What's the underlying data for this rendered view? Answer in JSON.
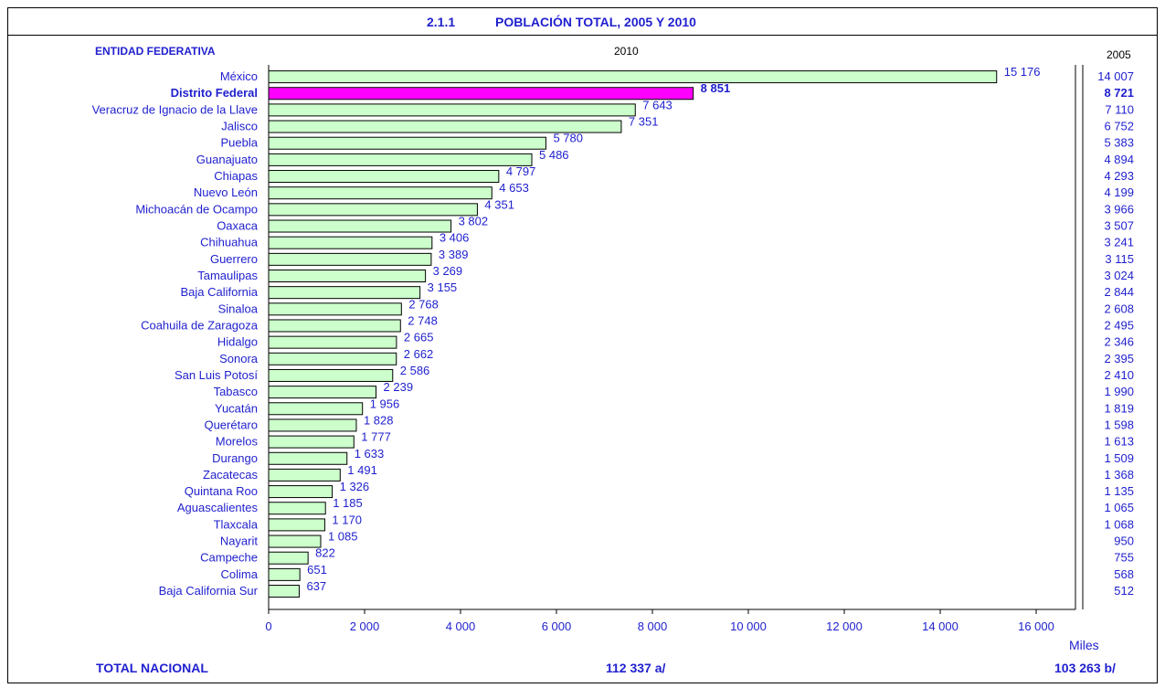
{
  "title": {
    "number": "2.1.1",
    "text": "POBLACIÓN TOTAL, 2005 Y 2010"
  },
  "headers": {
    "entidad": "ENTIDAD FEDERATIVA",
    "year_2010": "2010",
    "year_2005": "2005"
  },
  "unit": "Miles",
  "totals": {
    "label": "TOTAL NACIONAL",
    "value_2010": "112 337 a/",
    "value_2005": "103 263 b/"
  },
  "colors": {
    "bar": "#ccffcc",
    "highlight_bar": "#ff00ff",
    "text": "#1f1fcf"
  },
  "chart_data": {
    "type": "bar",
    "orientation": "horizontal",
    "title": "POBLACIÓN TOTAL, 2005 Y 2010",
    "xlabel": "Miles",
    "xlim": [
      0,
      16000
    ],
    "x_ticks": [
      0,
      2000,
      4000,
      6000,
      8000,
      10000,
      12000,
      14000,
      16000
    ],
    "x_tick_labels": [
      "0",
      "2 000",
      "4 000",
      "6 000",
      "8 000",
      "10 000",
      "12 000",
      "14 000",
      "16 000"
    ],
    "highlight": "Distrito Federal",
    "categories": [
      "México",
      "Distrito Federal",
      "Veracruz de Ignacio de la Llave",
      "Jalisco",
      "Puebla",
      "Guanajuato",
      "Chiapas",
      "Nuevo León",
      "Michoacán de Ocampo",
      "Oaxaca",
      "Chihuahua",
      "Guerrero",
      "Tamaulipas",
      "Baja California",
      "Sinaloa",
      "Coahuila de Zaragoza",
      "Hidalgo",
      "Sonora",
      "San Luis Potosí",
      "Tabasco",
      "Yucatán",
      "Querétaro",
      "Morelos",
      "Durango",
      "Zacatecas",
      "Quintana Roo",
      "Aguascalientes",
      "Tlaxcala",
      "Nayarit",
      "Campeche",
      "Colima",
      "Baja California Sur"
    ],
    "series": [
      {
        "name": "2010",
        "values": [
          15176,
          8851,
          7643,
          7351,
          5780,
          5486,
          4797,
          4653,
          4351,
          3802,
          3406,
          3389,
          3269,
          3155,
          2768,
          2748,
          2665,
          2662,
          2586,
          2239,
          1956,
          1828,
          1777,
          1633,
          1491,
          1326,
          1185,
          1170,
          1085,
          822,
          651,
          637
        ],
        "labels": [
          "15 176",
          "8 851",
          "7 643",
          "7 351",
          "5 780",
          "5 486",
          "4 797",
          "4 653",
          "4 351",
          "3 802",
          "3 406",
          "3 389",
          "3 269",
          "3 155",
          "2 768",
          "2 748",
          "2 665",
          "2 662",
          "2 586",
          "2 239",
          "1 956",
          "1 828",
          "1 777",
          "1 633",
          "1 491",
          "1 326",
          "1 185",
          "1 170",
          "1 085",
          "822",
          "651",
          "637"
        ]
      },
      {
        "name": "2005",
        "values": [
          14007,
          8721,
          7110,
          6752,
          5383,
          4894,
          4293,
          4199,
          3966,
          3507,
          3241,
          3115,
          3024,
          2844,
          2608,
          2495,
          2346,
          2395,
          2410,
          1990,
          1819,
          1598,
          1613,
          1509,
          1368,
          1135,
          1065,
          1068,
          950,
          755,
          568,
          512
        ],
        "labels": [
          "14 007",
          "8 721",
          "7 110",
          "6 752",
          "5 383",
          "4 894",
          "4 293",
          "4 199",
          "3 966",
          "3 507",
          "3 241",
          "3 115",
          "3 024",
          "2 844",
          "2 608",
          "2 495",
          "2 346",
          "2 395",
          "2 410",
          "1 990",
          "1 819",
          "1 598",
          "1 613",
          "1 509",
          "1 368",
          "1 135",
          "1 065",
          "1 068",
          "950",
          "755",
          "568",
          "512"
        ]
      }
    ]
  }
}
